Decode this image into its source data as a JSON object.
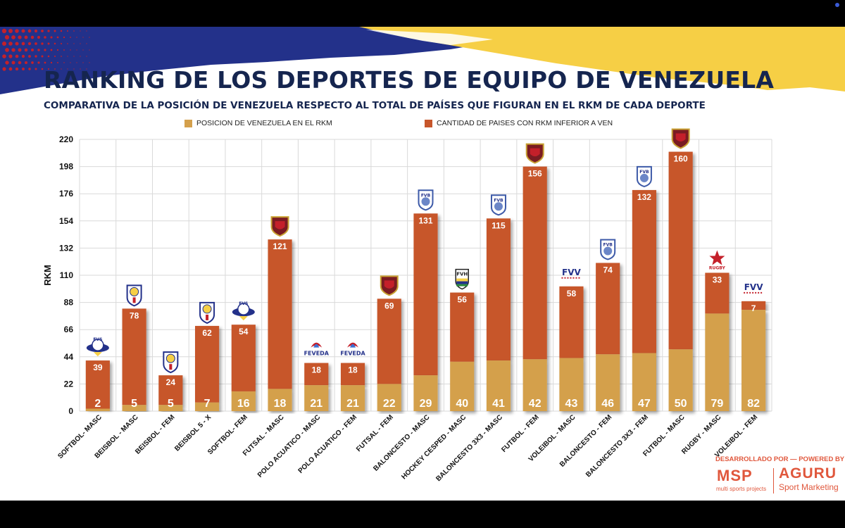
{
  "header": {
    "title": "RANKING DE LOS DEPORTES DE EQUIPO DE VENEZUELA",
    "subtitle": "COMPARATIVA DE LA POSICIÓN DE VENEZUELA RESPECTO AL TOTAL DE PAÍSES QUE FIGURAN EN EL RKM DE CADA DEPORTE"
  },
  "colors": {
    "title": "#15254f",
    "position": "#d4a04c",
    "inferior": "#c7562b",
    "flag_blue": "#23318a",
    "flag_yellow": "#f6cf45",
    "flag_red": "#c4202a"
  },
  "chart_data": {
    "type": "bar",
    "stacked": true,
    "title": "RANKING DE LOS DEPORTES DE EQUIPO DE VENEZUELA",
    "ylabel": "RKM",
    "xlabel": "",
    "ylim": [
      0,
      220
    ],
    "yticks": [
      0,
      22,
      44,
      66,
      88,
      110,
      132,
      154,
      176,
      198,
      220
    ],
    "grid": true,
    "legend_position": "top",
    "categories": [
      "SOFTBOL- MASC",
      "BEISBOL - MASC",
      "BEISBOL - FEM",
      "BEISBOL 5 - X",
      "SOFTBOL- FEM",
      "FUTSAL - MASC",
      "POLO ACUATICO - MASC",
      "POLO ACUATICO - FEM",
      "FUTSAL - FEM",
      "BALONCESTO - MASC",
      "HOCKEY CESPED - MASC",
      "BALONCESTO 3X3 - MASC",
      "FUTBOL - FEM",
      "VOLEIBOL - MASC",
      "BALONCESTO - FEM",
      "BALONCESTO 3X3 - FEM",
      "FUTBOL - MASC",
      "RUGBY - MASC",
      "VOLEIBOL - FEM"
    ],
    "series": [
      {
        "name": "POSICION DE VENEZUELA EN EL  RKM",
        "color": "#d4a04c",
        "values": [
          2,
          5,
          5,
          7,
          16,
          18,
          21,
          21,
          22,
          29,
          40,
          41,
          42,
          43,
          46,
          47,
          50,
          79,
          82
        ]
      },
      {
        "name": "CANTIDAD DE PAISES CON RKM INFERIOR A VEN",
        "color": "#c7562b",
        "values": [
          39,
          78,
          24,
          62,
          54,
          121,
          18,
          18,
          69,
          131,
          56,
          115,
          156,
          58,
          74,
          132,
          160,
          33,
          7
        ]
      }
    ],
    "federation_logos": [
      {
        "icon": "fvs-softbol-logo-icon",
        "text": "FVS"
      },
      {
        "icon": "beisbol-federation-logo-icon",
        "text": ""
      },
      {
        "icon": "beisbol-federation-logo-icon",
        "text": ""
      },
      {
        "icon": "beisbol-federation-logo-icon",
        "text": ""
      },
      {
        "icon": "fvs-softbol-logo-icon",
        "text": "FVS"
      },
      {
        "icon": "fvf-futbol-shield-icon",
        "text": ""
      },
      {
        "icon": "feveda-logo-icon",
        "text": "FEVEDA"
      },
      {
        "icon": "feveda-logo-icon",
        "text": "FEVEDA"
      },
      {
        "icon": "fvf-futbol-shield-icon",
        "text": ""
      },
      {
        "icon": "fvb-basketball-shield-icon",
        "text": "FVB"
      },
      {
        "icon": "fvh-hockey-shield-icon",
        "text": "FVH"
      },
      {
        "icon": "fvb-basketball-shield-icon",
        "text": "FVB"
      },
      {
        "icon": "fvf-futbol-shield-icon",
        "text": ""
      },
      {
        "icon": "fvv-voleibol-logo-icon",
        "text": "FVV"
      },
      {
        "icon": "fvb-basketball-shield-icon",
        "text": "FVB"
      },
      {
        "icon": "fvb-basketball-shield-icon",
        "text": "FVB"
      },
      {
        "icon": "fvf-futbol-shield-icon",
        "text": ""
      },
      {
        "icon": "rugby-star-logo-icon",
        "text": "RUGBY"
      },
      {
        "icon": "fvv-voleibol-logo-icon",
        "text": "FVV"
      }
    ]
  },
  "credits": {
    "text": "DESARROLLADO POR — POWERED BY",
    "msp": "MSP",
    "msp_sub": "multi sports projects",
    "aguru": "AGURU",
    "aguru_sub": "Sport Marketing"
  }
}
